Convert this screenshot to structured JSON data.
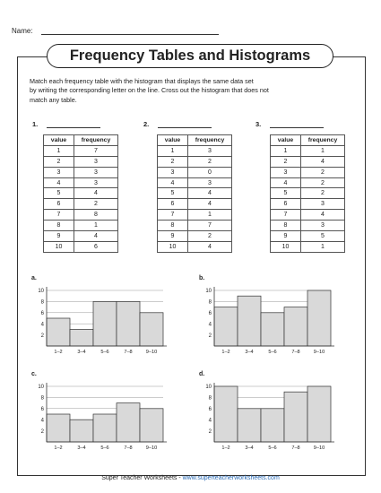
{
  "header": {
    "name_label": "Name:"
  },
  "title": "Frequency Tables and Histograms",
  "instructions": [
    "Match each frequency table with the histogram that displays the same data set",
    "by writing the corresponding letter on the line. Cross out the histogram that does not",
    "match any table."
  ],
  "tables": [
    {
      "number": "1.",
      "header_value": "value",
      "header_frequency": "frequency",
      "rows": [
        [
          "1",
          "7"
        ],
        [
          "2",
          "3"
        ],
        [
          "3",
          "3"
        ],
        [
          "4",
          "3"
        ],
        [
          "5",
          "4"
        ],
        [
          "6",
          "2"
        ],
        [
          "7",
          "8"
        ],
        [
          "8",
          "1"
        ],
        [
          "9",
          "4"
        ],
        [
          "10",
          "6"
        ]
      ]
    },
    {
      "number": "2.",
      "header_value": "value",
      "header_frequency": "frequency",
      "rows": [
        [
          "1",
          "3"
        ],
        [
          "2",
          "2"
        ],
        [
          "3",
          "0"
        ],
        [
          "4",
          "3"
        ],
        [
          "5",
          "4"
        ],
        [
          "6",
          "4"
        ],
        [
          "7",
          "1"
        ],
        [
          "8",
          "7"
        ],
        [
          "9",
          "2"
        ],
        [
          "10",
          "4"
        ]
      ]
    },
    {
      "number": "3.",
      "header_value": "value",
      "header_frequency": "frequency",
      "rows": [
        [
          "1",
          "1"
        ],
        [
          "2",
          "4"
        ],
        [
          "3",
          "2"
        ],
        [
          "4",
          "2"
        ],
        [
          "5",
          "2"
        ],
        [
          "6",
          "3"
        ],
        [
          "7",
          "4"
        ],
        [
          "8",
          "3"
        ],
        [
          "9",
          "5"
        ],
        [
          "10",
          "1"
        ]
      ]
    }
  ],
  "chart_data": [
    {
      "type": "bar",
      "label": "a.",
      "categories": [
        "1–2",
        "3–4",
        "5–6",
        "7–8",
        "9–10"
      ],
      "values": [
        5,
        3,
        8,
        8,
        6
      ],
      "ylim": [
        0,
        10
      ],
      "yticks": [
        2,
        4,
        6,
        8,
        10
      ]
    },
    {
      "type": "bar",
      "label": "b.",
      "categories": [
        "1–2",
        "3–4",
        "5–6",
        "7–8",
        "9–10"
      ],
      "values": [
        7,
        9,
        6,
        7,
        10
      ],
      "ylim": [
        0,
        10
      ],
      "yticks": [
        2,
        4,
        6,
        8,
        10
      ]
    },
    {
      "type": "bar",
      "label": "c.",
      "categories": [
        "1–2",
        "3–4",
        "5–6",
        "7–8",
        "9–10"
      ],
      "values": [
        5,
        4,
        5,
        7,
        6
      ],
      "ylim": [
        0,
        10
      ],
      "yticks": [
        2,
        4,
        6,
        8,
        10
      ]
    },
    {
      "type": "bar",
      "label": "d.",
      "categories": [
        "1–2",
        "3–4",
        "5–6",
        "7–8",
        "9–10"
      ],
      "values": [
        10,
        6,
        6,
        9,
        10
      ],
      "ylim": [
        0,
        10
      ],
      "yticks": [
        2,
        4,
        6,
        8,
        10
      ]
    }
  ],
  "footer": {
    "text": "Super Teacher Worksheets - ",
    "url": "www.superteacherworksheets.com"
  },
  "colors": {
    "bar_fill": "#d9d9d9",
    "url": "#2a6bb5",
    "grid": "#999999"
  }
}
